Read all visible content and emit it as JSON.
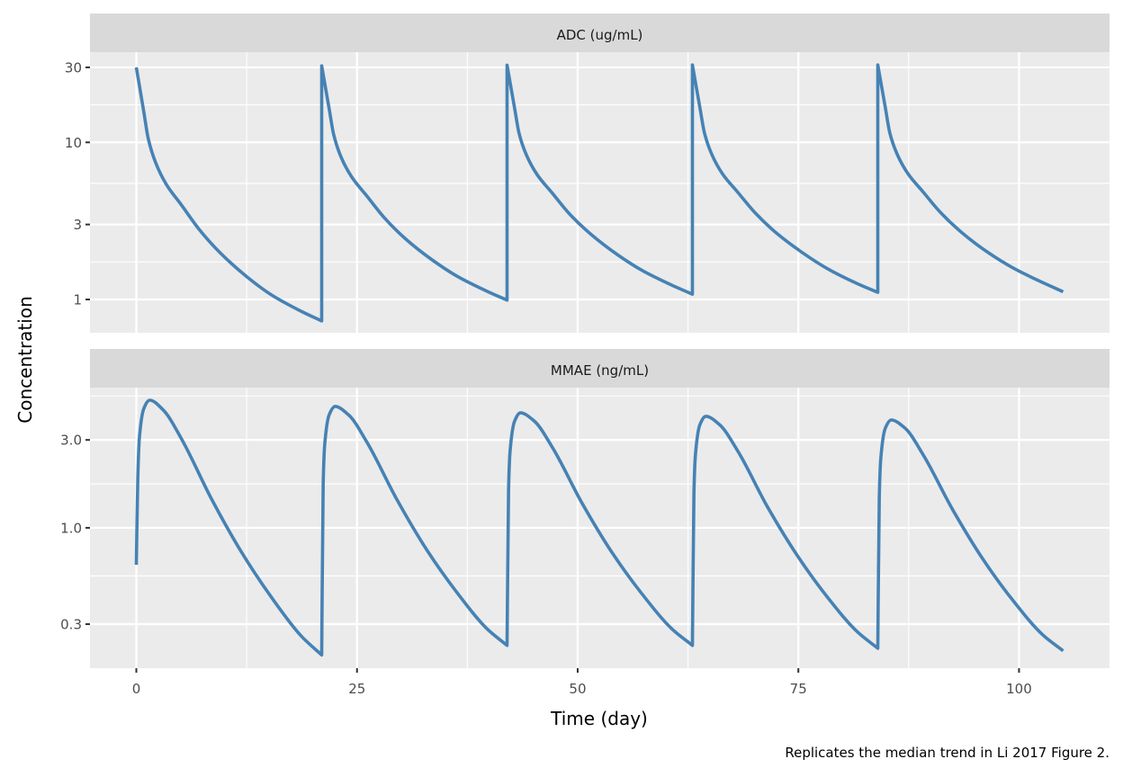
{
  "chart_data": {
    "type": "line",
    "xlabel": "Time (day)",
    "ylabel": "Concentration",
    "caption": "Replicates the median trend in Li 2017 Figure 2.",
    "xlim": [
      -5.25,
      110.25
    ],
    "x_ticks": [
      0,
      25,
      50,
      75,
      100
    ],
    "x_tick_labels": [
      "0",
      "25",
      "50",
      "75",
      "100"
    ],
    "grid": true,
    "line_color": "#4682b4",
    "panel_background": "#ebebeb",
    "strip_background": "#d9d9d9",
    "facets": [
      {
        "strip": "ADC (ug/mL)",
        "yscale": "log10",
        "ylim": [
          0.614,
          37.5
        ],
        "y_ticks": [
          1,
          3,
          10,
          30
        ],
        "y_tick_labels": [
          "1",
          "3",
          "10",
          "30"
        ],
        "x": [
          0,
          0.85,
          1.36,
          2.2,
          3.4,
          5.1,
          7.1,
          9.5,
          12.55,
          15.3,
          18.7,
          21,
          21,
          21.85,
          22.36,
          23.2,
          24.4,
          26.1,
          28.1,
          30.5,
          33.55,
          36.3,
          39.7,
          42,
          42,
          42.85,
          43.36,
          44.2,
          45.4,
          47.1,
          49.1,
          51.5,
          54.55,
          57.3,
          60.7,
          63,
          63,
          63.85,
          64.36,
          65.2,
          66.4,
          68.1,
          70.1,
          72.5,
          75.55,
          78.3,
          81.7,
          84,
          84,
          84.85,
          85.36,
          86.2,
          87.4,
          89.1,
          91.1,
          93.5,
          96.55,
          99.3,
          102.7,
          105
        ],
        "y": [
          30,
          15.6,
          10.5,
          7.4,
          5.4,
          4.0,
          2.8,
          1.98,
          1.39,
          1.07,
          0.84,
          0.73,
          30.7,
          16.3,
          11.2,
          8.05,
          6.02,
          4.57,
          3.31,
          2.43,
          1.78,
          1.41,
          1.13,
          0.99,
          31.0,
          16.55,
          11.42,
          8.29,
          6.24,
          4.77,
          3.49,
          2.6,
          1.92,
          1.53,
          1.23,
          1.08,
          31.1,
          16.6,
          11.5,
          8.37,
          6.31,
          4.84,
          3.56,
          2.65,
          1.97,
          1.57,
          1.26,
          1.11,
          31.1,
          16.7,
          11.5,
          8.39,
          6.34,
          4.86,
          3.58,
          2.67,
          1.98,
          1.59,
          1.28,
          1.12
        ]
      },
      {
        "strip": "MMAE (ng/mL)",
        "yscale": "log10",
        "ylim": [
          0.173,
          5.77
        ],
        "y_ticks": [
          0.3,
          1.0,
          3.0
        ],
        "y_tick_labels": [
          "0.3",
          "1.0",
          "3.0"
        ],
        "x": [
          0,
          0.17,
          0.34,
          0.85,
          1.52,
          3.05,
          5.1,
          8.5,
          11.9,
          15.3,
          18.7,
          21,
          21,
          21.17,
          21.34,
          21.85,
          22.52,
          24.05,
          26.1,
          29.5,
          32.9,
          36.3,
          39.7,
          42,
          42,
          42.17,
          42.34,
          42.85,
          43.52,
          45.05,
          47.1,
          50.5,
          53.9,
          57.3,
          60.7,
          63,
          63,
          63.17,
          63.34,
          63.85,
          64.52,
          66.05,
          68.1,
          71.5,
          74.9,
          78.3,
          81.7,
          84,
          84,
          84.17,
          84.34,
          84.85,
          85.52,
          87.05,
          89.1,
          92.5,
          95.9,
          99.3,
          102.7,
          105
        ],
        "y": [
          0.63,
          1.88,
          3.05,
          4.44,
          4.93,
          4.36,
          3.05,
          1.44,
          0.74,
          0.42,
          0.258,
          0.204,
          0.204,
          1.74,
          2.82,
          4.11,
          4.56,
          4.1,
          2.93,
          1.43,
          0.76,
          0.447,
          0.284,
          0.23,
          0.23,
          1.61,
          2.6,
          3.79,
          4.21,
          3.81,
          2.75,
          1.36,
          0.733,
          0.437,
          0.282,
          0.23,
          0.23,
          1.54,
          2.49,
          3.63,
          4.03,
          3.64,
          2.63,
          1.3,
          0.705,
          0.42,
          0.272,
          0.222,
          0.222,
          1.47,
          2.38,
          3.47,
          3.85,
          3.49,
          2.51,
          1.25,
          0.677,
          0.404,
          0.262,
          0.215
        ]
      }
    ]
  }
}
